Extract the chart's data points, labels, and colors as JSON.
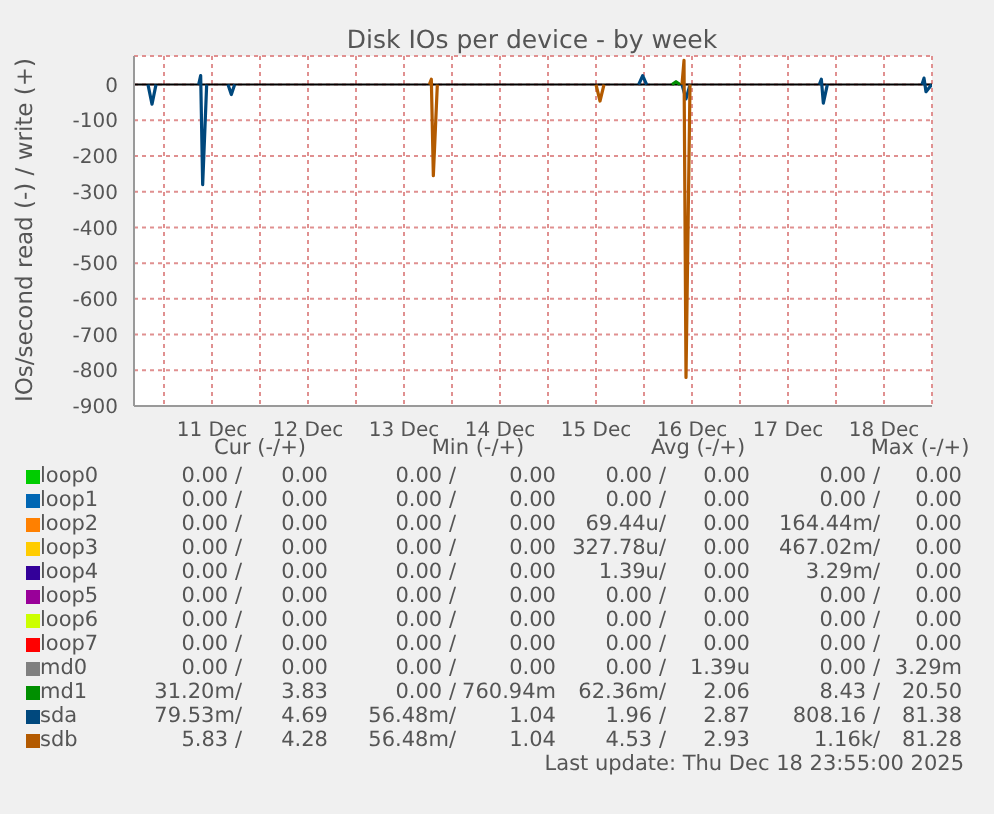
{
  "chart_data": {
    "type": "line",
    "title": "Disk IOs per device - by week",
    "ylabel": "IOs/second read (-) / write (+)",
    "series": [
      {
        "name": "loop0",
        "color": "#00cc00"
      },
      {
        "name": "loop1",
        "color": "#0066b3"
      },
      {
        "name": "loop2",
        "color": "#ff8000"
      },
      {
        "name": "loop3",
        "color": "#ffcc00"
      },
      {
        "name": "loop4",
        "color": "#330099"
      },
      {
        "name": "loop5",
        "color": "#990099"
      },
      {
        "name": "loop6",
        "color": "#ccff00"
      },
      {
        "name": "loop7",
        "color": "#ff0000"
      },
      {
        "name": "md0",
        "color": "#808080"
      },
      {
        "name": "md1",
        "color": "#008f00",
        "x": [
          "2025-12-16T07:00",
          "2025-12-16T08:00",
          "2025-12-16T09:00"
        ],
        "values": [
          0,
          8,
          0
        ]
      },
      {
        "name": "sda",
        "color": "#00487d",
        "x": [
          "2025-12-10T20:00",
          "2025-12-10T21:00",
          "2025-12-10T22:00",
          "2025-12-11T00:00",
          "2025-12-11T08:40",
          "2025-12-11T09:10",
          "2025-12-11T09:40",
          "2025-12-11T10:40",
          "2025-12-11T12:00",
          "2025-12-11T16:00",
          "2025-12-11T16:50",
          "2025-12-11T17:40",
          "2025-12-12T00:00",
          "2025-12-15T22:40",
          "2025-12-15T23:40",
          "2025-12-16T00:40",
          "2025-12-16T05:00",
          "2025-12-16T09:30",
          "2025-12-16T10:30",
          "2025-12-16T11:30",
          "2025-12-16T15:00",
          "2025-12-17T19:50",
          "2025-12-17T20:20",
          "2025-12-17T20:50",
          "2025-12-17T21:50",
          "2025-12-18T00:00",
          "2025-12-18T21:30",
          "2025-12-18T22:00",
          "2025-12-18T22:30",
          "2025-12-18T23:55"
        ],
        "values": [
          0,
          -55,
          0,
          null,
          0,
          25,
          -280,
          0,
          null,
          0,
          -28,
          0,
          null,
          0,
          25,
          0,
          null,
          0,
          -40,
          0,
          null,
          0,
          15,
          -52,
          0,
          null,
          0,
          18,
          -20,
          0
        ]
      },
      {
        "name": "sdb",
        "color": "#b35a00",
        "x": [
          "2025-12-13T18:20",
          "2025-12-13T18:50",
          "2025-12-13T19:20",
          "2025-12-13T20:20",
          "2025-12-14T00:00",
          "2025-12-15T12:00",
          "2025-12-15T13:00",
          "2025-12-15T14:00",
          "2025-12-15T18:00",
          "2025-12-16T09:30",
          "2025-12-16T10:00",
          "2025-12-16T10:30",
          "2025-12-16T11:30"
        ],
        "values": [
          0,
          15,
          -255,
          0,
          null,
          0,
          -46,
          0,
          null,
          0,
          68,
          -820,
          0
        ]
      }
    ],
    "xlim": [
      "2025-12-10T16:30",
      "2025-12-19T00:00"
    ],
    "xticks": [
      {
        "value": "2025-12-11T00:00",
        "label": null
      },
      {
        "value": "2025-12-11T12:00",
        "label": "11 Dec"
      },
      {
        "value": "2025-12-12T00:00",
        "label": null
      },
      {
        "value": "2025-12-12T12:00",
        "label": "12 Dec"
      },
      {
        "value": "2025-12-13T00:00",
        "label": null
      },
      {
        "value": "2025-12-13T12:00",
        "label": "13 Dec"
      },
      {
        "value": "2025-12-14T00:00",
        "label": null
      },
      {
        "value": "2025-12-14T12:00",
        "label": "14 Dec"
      },
      {
        "value": "2025-12-15T00:00",
        "label": null
      },
      {
        "value": "2025-12-15T12:00",
        "label": "15 Dec"
      },
      {
        "value": "2025-12-16T00:00",
        "label": null
      },
      {
        "value": "2025-12-16T12:00",
        "label": "16 Dec"
      },
      {
        "value": "2025-12-17T00:00",
        "label": null
      },
      {
        "value": "2025-12-17T12:00",
        "label": "17 Dec"
      },
      {
        "value": "2025-12-18T00:00",
        "label": null
      },
      {
        "value": "2025-12-18T12:00",
        "label": "18 Dec"
      }
    ],
    "ylim": [
      -900,
      80
    ],
    "yticks": [
      -900,
      -800,
      -700,
      -600,
      -500,
      -400,
      -300,
      -200,
      -100,
      0
    ],
    "grid": true,
    "legend": "bottom",
    "marker": "none",
    "line_style": "solid",
    "ref_lines": [
      {
        "axis": "y",
        "value": 0,
        "color": "#000000"
      }
    ],
    "annotations": [
      "Cur (-/+)",
      "Min (-/+)",
      "Avg (-/+)",
      "Max (-/+)",
      "0.00 /",
      "0.00",
      "0.00 /",
      "0.00",
      "0.00 /",
      "0.00",
      "0.00 /",
      "0.00",
      "0.00 /",
      "0.00",
      "0.00 /",
      "0.00",
      "0.00 /",
      "0.00",
      "0.00 /",
      "0.00",
      "0.00 /",
      "0.00",
      "0.00 /",
      "0.00",
      "69.44u/",
      "0.00",
      "164.44m/",
      "0.00",
      "0.00 /",
      "0.00",
      "0.00 /",
      "0.00",
      "327.78u/",
      "0.00",
      "467.02m/",
      "0.00",
      "0.00 /",
      "0.00",
      "0.00 /",
      "0.00",
      "1.39u/",
      "0.00",
      "3.29m/",
      "0.00",
      "0.00 /",
      "0.00",
      "0.00 /",
      "0.00",
      "0.00 /",
      "0.00",
      "0.00 /",
      "0.00",
      "0.00 /",
      "0.00",
      "0.00 /",
      "0.00",
      "0.00 /",
      "0.00",
      "0.00 /",
      "0.00",
      "0.00 /",
      "0.00",
      "0.00 /",
      "0.00",
      "0.00 /",
      "0.00",
      "0.00 /",
      "0.00",
      "0.00 /",
      "0.00",
      "0.00 /",
      "0.00",
      "0.00 /",
      "1.39u",
      "0.00 /",
      "3.29m",
      "31.20m/",
      "3.83",
      "0.00 /",
      "760.94m",
      "62.36m/",
      "2.06",
      "8.43 /",
      "20.50",
      "79.53m/",
      "4.69",
      "56.48m/",
      "1.04",
      "1.96 /",
      "2.87",
      "808.16 /",
      "81.38",
      "5.83 /",
      "4.28",
      "56.48m/",
      "1.04",
      "4.53 /",
      "2.93",
      "1.16k/",
      "81.28",
      "Last update: Thu Dec 18 23:55:00 2025"
    ]
  }
}
